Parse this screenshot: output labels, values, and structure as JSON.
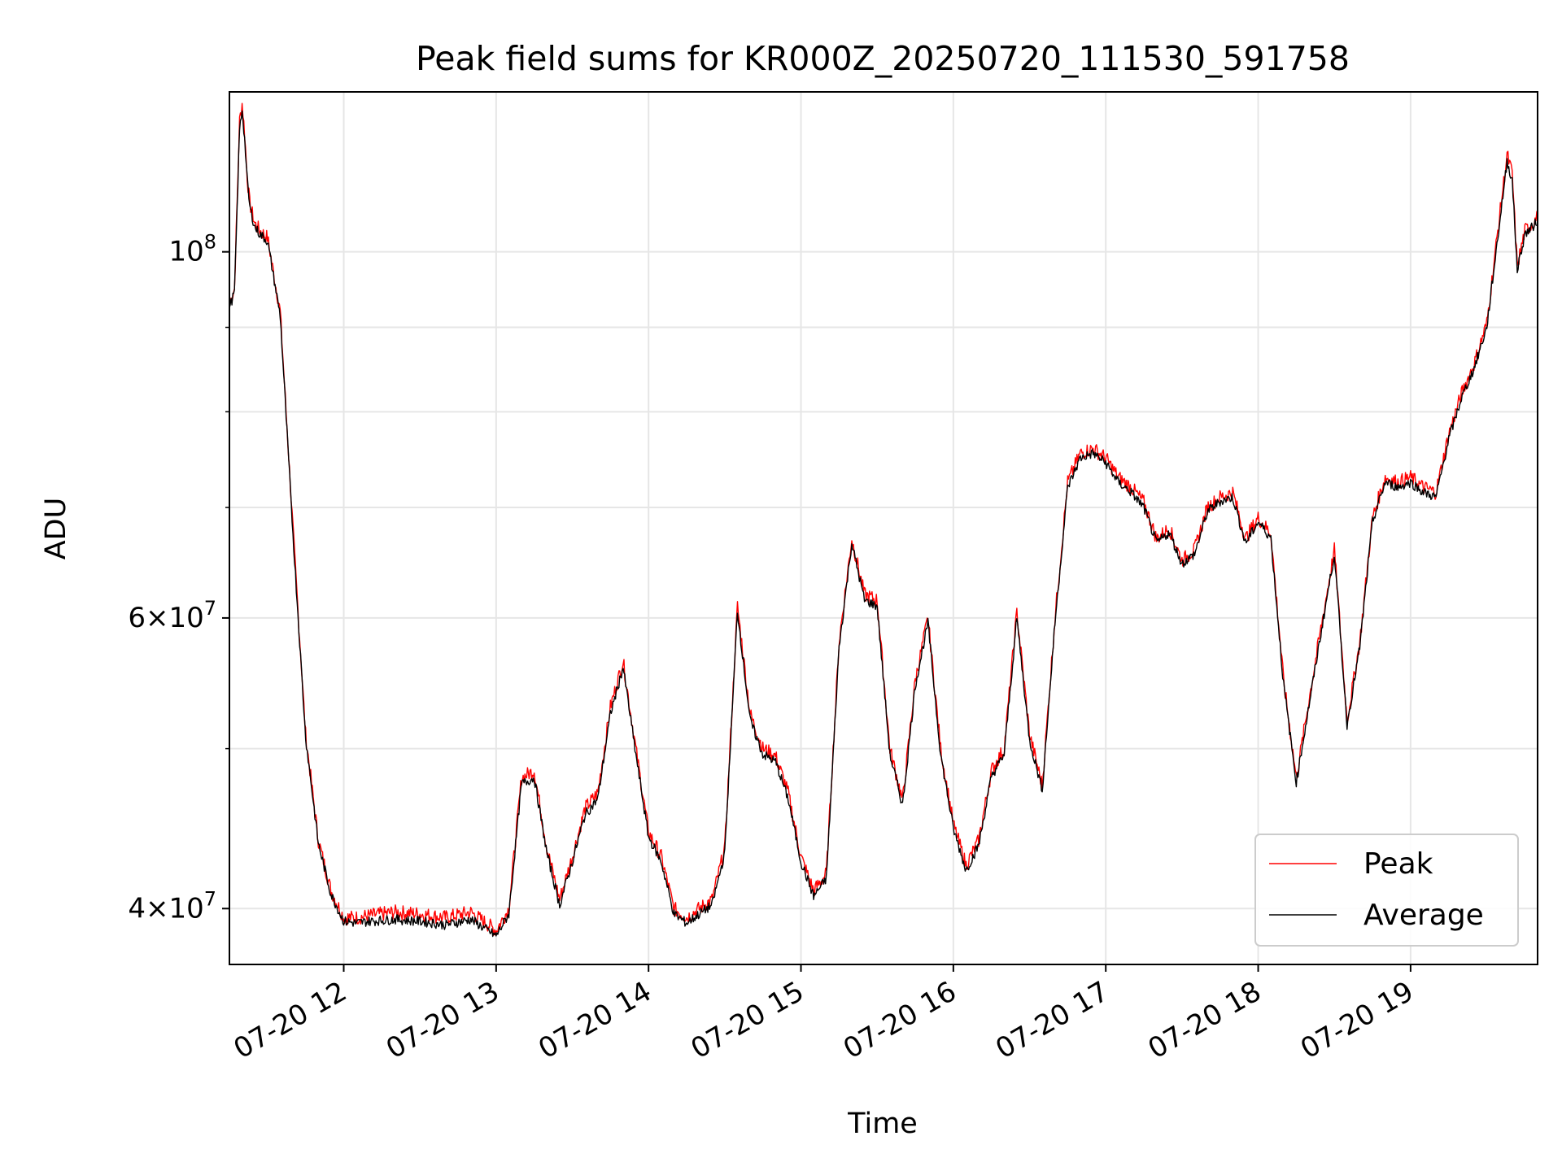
{
  "chart_data": {
    "type": "line",
    "title": "Peak field sums for KR000Z_20250720_111530_591758",
    "xlabel": "Time",
    "ylabel": "ADU",
    "y_scale": "log",
    "grid": true,
    "legend": {
      "placement": "lower-right"
    },
    "xlim": [
      "07-20 11:15",
      "07-20 19:50"
    ],
    "ylim": [
      37000000,
      125000000
    ],
    "x_ticks": [
      "07-20 12",
      "07-20 13",
      "07-20 14",
      "07-20 15",
      "07-20 16",
      "07-20 17",
      "07-20 18",
      "07-20 19"
    ],
    "y_tick_labels": [
      {
        "value": 100000000,
        "mantissa": "",
        "exp": "8"
      },
      {
        "value": 60000000,
        "mantissa": "6",
        "exp": "7"
      },
      {
        "value": 40000000,
        "mantissa": "4",
        "exp": "7"
      }
    ],
    "y_minor_grid": [
      50000000,
      70000000,
      80000000,
      90000000
    ],
    "x": [
      "11:15",
      "11:17",
      "11:19",
      "11:20",
      "11:21",
      "11:22",
      "11:23",
      "11:25",
      "11:27",
      "11:30",
      "11:35",
      "11:40",
      "11:45",
      "11:50",
      "11:55",
      "12:00",
      "12:05",
      "12:10",
      "12:20",
      "12:30",
      "12:40",
      "12:50",
      "13:00",
      "13:05",
      "13:10",
      "13:15",
      "13:20",
      "13:25",
      "13:30",
      "13:35",
      "13:40",
      "13:45",
      "13:50",
      "13:55",
      "14:00",
      "14:05",
      "14:10",
      "14:15",
      "14:20",
      "14:25",
      "14:30",
      "14:35",
      "14:40",
      "14:45",
      "14:50",
      "14:55",
      "15:00",
      "15:05",
      "15:10",
      "15:15",
      "15:20",
      "15:25",
      "15:30",
      "15:35",
      "15:40",
      "15:45",
      "15:50",
      "15:55",
      "16:00",
      "16:05",
      "16:10",
      "16:15",
      "16:20",
      "16:25",
      "16:30",
      "16:35",
      "16:40",
      "16:45",
      "16:50",
      "16:55",
      "17:00",
      "17:05",
      "17:10",
      "17:15",
      "17:20",
      "17:25",
      "17:30",
      "17:35",
      "17:40",
      "17:45",
      "17:50",
      "17:55",
      "18:00",
      "18:05",
      "18:10",
      "18:15",
      "18:20",
      "18:25",
      "18:30",
      "18:35",
      "18:40",
      "18:45",
      "18:50",
      "18:55",
      "19:00",
      "19:05",
      "19:10",
      "19:15",
      "19:20",
      "19:25",
      "19:30",
      "19:35",
      "19:38",
      "19:40",
      "19:42",
      "19:45",
      "19:48",
      "19:50"
    ],
    "series": [
      {
        "name": "Peak",
        "color": "#ff0000",
        "values": [
          93000000,
          95000000,
          120000000,
          123000000,
          118000000,
          111000000,
          107000000,
          104000000,
          103000000,
          102000000,
          92000000,
          68000000,
          51000000,
          44000000,
          41000000,
          39500000,
          39500000,
          39600000,
          39800000,
          39700000,
          39500000,
          39800000,
          38800000,
          40000000,
          48000000,
          48500000,
          43500000,
          40500000,
          43000000,
          46000000,
          47000000,
          53000000,
          56500000,
          50000000,
          44500000,
          43000000,
          40000000,
          39500000,
          40000000,
          40500000,
          43500000,
          61000000,
          52500000,
          50000000,
          49500000,
          47000000,
          43000000,
          41000000,
          42000000,
          58000000,
          67000000,
          62000000,
          61500000,
          50000000,
          46500000,
          55000000,
          60000000,
          50000000,
          45000000,
          42500000,
          44000000,
          48500000,
          50000000,
          60500000,
          51000000,
          47500000,
          60000000,
          72500000,
          75500000,
          76000000,
          75000000,
          73000000,
          72000000,
          70500000,
          67000000,
          68000000,
          65000000,
          66000000,
          70000000,
          71000000,
          71500000,
          67000000,
          69000000,
          67500000,
          55000000,
          48000000,
          53500000,
          59500000,
          66000000,
          52000000,
          58000000,
          69000000,
          73000000,
          72500000,
          73000000,
          72000000,
          71500000,
          77500000,
          82000000,
          85500000,
          90500000,
          105000000,
          114500000,
          111500000,
          98000000,
          103000000,
          104000000,
          105000000
        ]
      },
      {
        "name": "Average",
        "color": "#000000",
        "values": [
          92500000,
          94500000,
          118500000,
          122000000,
          117000000,
          110500000,
          106500000,
          103500000,
          102500000,
          101500000,
          91500000,
          67500000,
          50800000,
          43800000,
          40800000,
          39300000,
          39200000,
          39300000,
          39400000,
          39300000,
          39100000,
          39400000,
          38500000,
          39700000,
          47600000,
          48000000,
          43200000,
          40200000,
          42700000,
          45600000,
          46600000,
          52500000,
          56000000,
          49600000,
          44200000,
          42700000,
          39700000,
          39200000,
          39700000,
          40200000,
          43200000,
          60600000,
          52000000,
          49600000,
          49100000,
          46600000,
          42700000,
          40700000,
          41700000,
          57600000,
          66600000,
          61500000,
          61000000,
          49600000,
          46200000,
          54600000,
          59600000,
          49600000,
          44700000,
          42200000,
          43700000,
          48100000,
          49600000,
          60000000,
          50600000,
          47200000,
          59600000,
          72000000,
          75000000,
          75500000,
          74500000,
          72500000,
          71500000,
          70000000,
          66600000,
          67600000,
          64700000,
          65600000,
          69600000,
          70600000,
          71000000,
          66600000,
          68600000,
          67100000,
          54700000,
          47700000,
          53100000,
          59100000,
          65600000,
          51700000,
          57600000,
          68600000,
          72500000,
          72000000,
          72500000,
          71500000,
          71000000,
          77000000,
          81500000,
          85000000,
          90000000,
          104000000,
          113500000,
          110500000,
          97500000,
          102500000,
          103500000,
          104500000
        ]
      }
    ]
  }
}
